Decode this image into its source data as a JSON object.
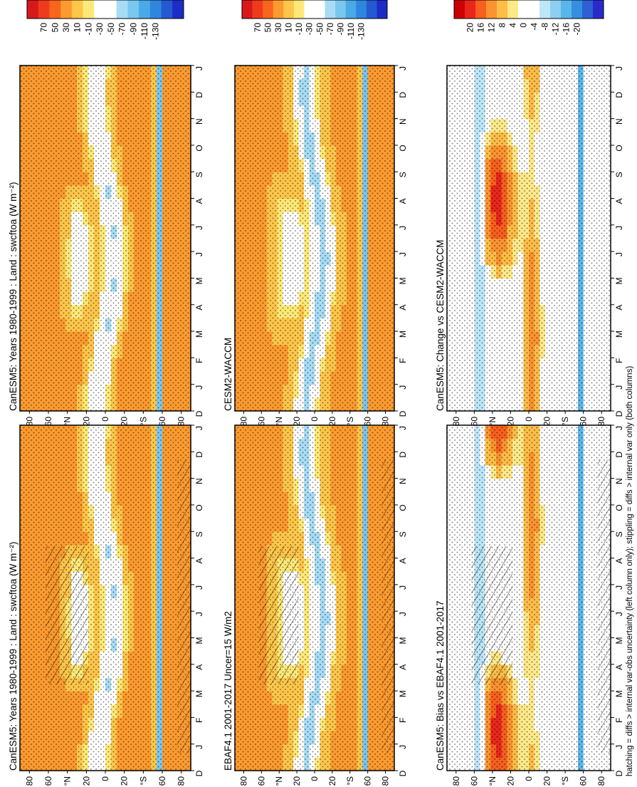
{
  "chart_data": [
    {
      "type": "heatmap",
      "title": "CanESM5: Years 1980-1999 : Land : swcftoa (W m⁻²)",
      "months": [
        "D",
        "J",
        "F",
        "M",
        "A",
        "M",
        "J",
        "J",
        "A",
        "S",
        "O",
        "N",
        "D",
        "J"
      ],
      "lat_ticks": [
        "80",
        "60",
        "°N",
        "20",
        "0",
        "20",
        "°S",
        "60",
        "80"
      ],
      "colorbar": [
        "70",
        "50",
        "30",
        "10",
        "-10",
        "-30",
        "-50",
        "-70",
        "-90",
        "-110",
        "-130"
      ],
      "overlay": "hatch+stipple",
      "field": "abs"
    },
    {
      "type": "heatmap",
      "title": "EBAF4.1 2001-2017 Uncer=15 W/m2",
      "months": [
        "D",
        "J",
        "F",
        "M",
        "A",
        "M",
        "J",
        "J",
        "A",
        "S",
        "O",
        "N",
        "D",
        "J"
      ],
      "lat_ticks": [
        "80",
        "60",
        "°N",
        "20",
        "0",
        "20",
        "°S",
        "60",
        "80"
      ],
      "colorbar": [
        "70",
        "50",
        "30",
        "10",
        "-10",
        "-30",
        "-50",
        "-70",
        "-90",
        "-110",
        "-130"
      ],
      "overlay": "hatch+stipple",
      "field": "abs"
    },
    {
      "type": "heatmap",
      "title": "CanESM5: Bias vs EBAF4.1 2001-2017",
      "months": [
        "D",
        "J",
        "F",
        "M",
        "A",
        "M",
        "J",
        "J",
        "A",
        "S",
        "O",
        "N",
        "D",
        "J"
      ],
      "lat_ticks": [
        "80",
        "60",
        "°N",
        "20",
        "0",
        "20",
        "°S",
        "60",
        "80"
      ],
      "colorbar": [
        "20",
        "16",
        "12",
        "8",
        "4",
        "0",
        "-4",
        "-8",
        "-12",
        "-16",
        "-20"
      ],
      "overlay": "hatch+stipple",
      "field": "diff"
    },
    {
      "type": "heatmap",
      "title": "CanESM5: Years 1980-1999 : Land : swcftoa (W m⁻²)",
      "months": [
        "D",
        "J",
        "F",
        "M",
        "A",
        "M",
        "J",
        "J",
        "A",
        "S",
        "O",
        "N",
        "D",
        "J"
      ],
      "lat_ticks": [
        "80",
        "60",
        "°N",
        "20",
        "0",
        "20",
        "°S",
        "60",
        "80"
      ],
      "colorbar": [
        "70",
        "50",
        "30",
        "10",
        "-10",
        "-30",
        "-50",
        "-70",
        "-90",
        "-110",
        "-130"
      ],
      "overlay": "stipple",
      "field": "abs"
    },
    {
      "type": "heatmap",
      "title": "CESM2-WACCM",
      "months": [
        "D",
        "J",
        "F",
        "M",
        "A",
        "M",
        "J",
        "J",
        "A",
        "S",
        "O",
        "N",
        "D",
        "J"
      ],
      "lat_ticks": [
        "80",
        "60",
        "°N",
        "20",
        "0",
        "20",
        "°S",
        "60",
        "80"
      ],
      "colorbar": [
        "70",
        "50",
        "30",
        "10",
        "-10",
        "-30",
        "-50",
        "-70",
        "-90",
        "-110",
        "-130"
      ],
      "overlay": "stipple",
      "field": "abs"
    },
    {
      "type": "heatmap",
      "title": "CanESM5: Change vs CESM2-WACCM",
      "months": [
        "D",
        "J",
        "F",
        "M",
        "A",
        "M",
        "J",
        "J",
        "A",
        "S",
        "O",
        "N",
        "D",
        "J"
      ],
      "lat_ticks": [
        "80",
        "60",
        "°N",
        "20",
        "0",
        "20",
        "°S",
        "60",
        "80"
      ],
      "colorbar": [
        "20",
        "16",
        "12",
        "8",
        "4",
        "0",
        "-4",
        "-8",
        "-12",
        "-16",
        "-20"
      ],
      "overlay": "stipple",
      "field": "diff"
    }
  ],
  "footnote": "hatching = diffs > internal var-obs uncertainty (left column only); stippling = diffs > internal var only (both columns)",
  "colors": {
    "abs": [
      "#d7191c",
      "#ef3b1d",
      "#f8651f",
      "#fb9a2f",
      "#fdc64a",
      "#fee978",
      "#ffffff",
      "#ffffff",
      "#a6dcf5",
      "#79c6ef",
      "#4aa9e6",
      "#2f86de",
      "#2459d1",
      "#1c2dc4"
    ],
    "diff": [
      "#cc0000",
      "#e8261c",
      "#f65f1e",
      "#fa9330",
      "#fdbd47",
      "#fee98a",
      "#ffffff",
      "#ffffff",
      "#bde6f8",
      "#8ccff2",
      "#59b6ea",
      "#3490de",
      "#2e5fd3",
      "#2a2acb"
    ]
  }
}
